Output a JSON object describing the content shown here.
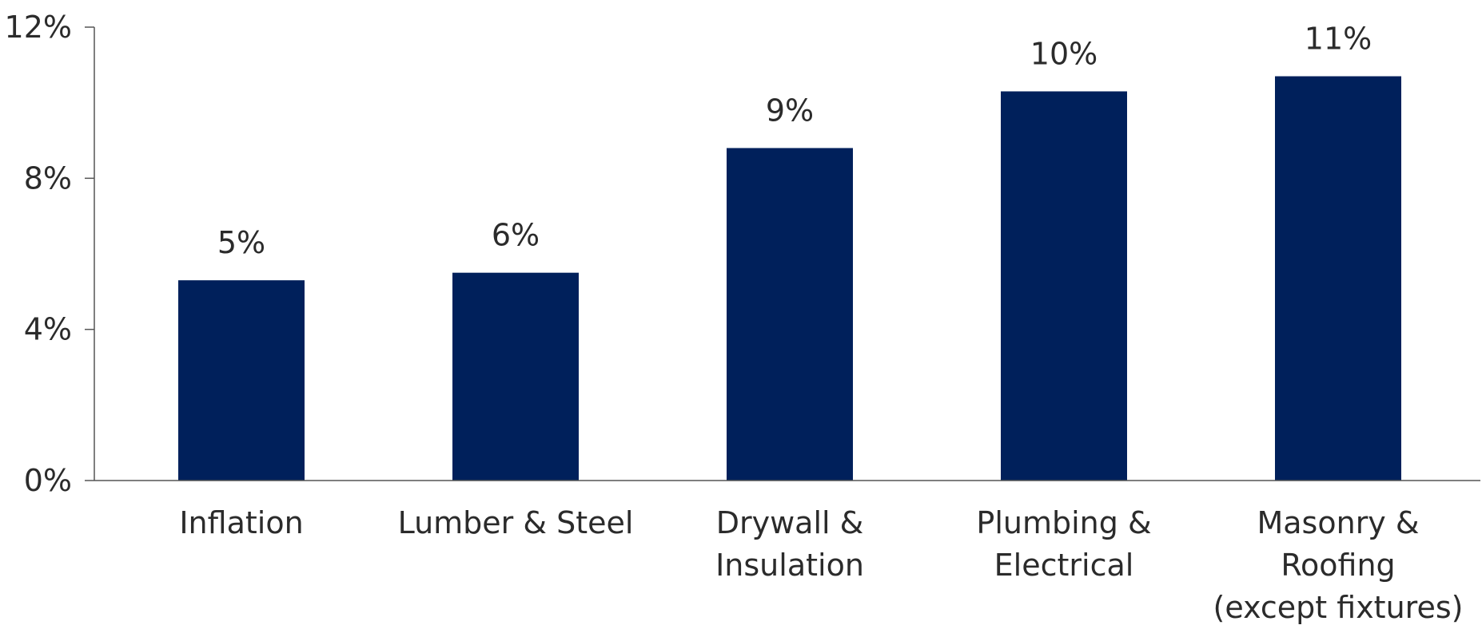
{
  "chart_data": {
    "type": "bar",
    "categories": [
      [
        "Inflation"
      ],
      [
        "Lumber & Steel"
      ],
      [
        "Drywall &",
        "Insulation"
      ],
      [
        "Plumbing &",
        "Electrical"
      ],
      [
        "Masonry &",
        "Roofing",
        "(except fixtures)"
      ]
    ],
    "values": [
      5.3,
      5.5,
      8.8,
      10.3,
      10.7
    ],
    "data_labels": [
      "5%",
      "6%",
      "9%",
      "10%",
      "11%"
    ],
    "ylim": [
      0,
      12
    ],
    "yticks": [
      0,
      4,
      8,
      12
    ],
    "ytick_labels": [
      "0%",
      "4%",
      "8%",
      "12%"
    ],
    "title": "",
    "xlabel": "",
    "ylabel": "",
    "grid": false,
    "legend": "none",
    "colors": {
      "bar": "#00205B",
      "axis": "#555555"
    }
  }
}
